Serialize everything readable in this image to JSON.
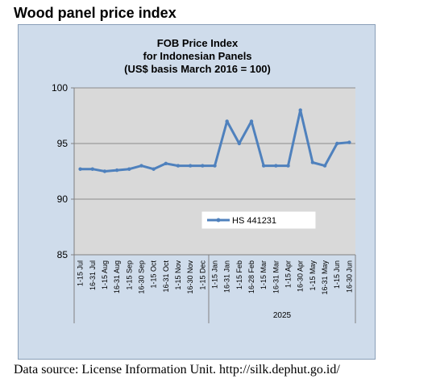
{
  "heading": "Wood panel price index",
  "source": "Data source: License Information Unit. http://silk.dephut.go.id/",
  "colors": {
    "frame_bg": "#cfdceb",
    "plot_bg": "#d9d9d9",
    "series": "#4f81bd",
    "grid": "#8c8c8c"
  },
  "chart_data": {
    "type": "line",
    "title": [
      "FOB Price Index",
      "for Indonesian Panels",
      "(US$ basis March 2016 = 100)"
    ],
    "xlabel": "",
    "ylabel": "",
    "ylim": [
      85,
      100
    ],
    "yticks": [
      85,
      90,
      95,
      100
    ],
    "grid": true,
    "legend": "inside-lower-right",
    "x": [
      "1-15 Jul",
      "16-31 Jul",
      "1-15 Aug",
      "16-31 Aug",
      "1-15 Sep",
      "16-30 Sep",
      "1-15 Oct",
      "16-31 Oct",
      "1-15 Nov",
      "16-30 Nov",
      "1-15 Dec",
      "1-15 Jan",
      "16-31 Jan",
      "1-15 Feb",
      "16-28 Feb",
      "1-15 Mar",
      "16-31 Mar",
      "1-15 Apr",
      "16-30 Apr",
      "1-15 May",
      "16-31 May",
      "1-15 Jun",
      "16-30 Jun"
    ],
    "year_groups": [
      {
        "label": "",
        "start": 0,
        "end": 10
      },
      {
        "label": "2025",
        "start": 11,
        "end": 22
      }
    ],
    "series": [
      {
        "name": "HS 441231",
        "values": [
          92.7,
          92.7,
          92.5,
          92.6,
          92.7,
          93.0,
          92.7,
          93.2,
          93.0,
          93.0,
          93.0,
          93.0,
          97.0,
          95.0,
          97.0,
          93.0,
          93.0,
          93.0,
          98.0,
          93.3,
          93.0,
          95.0,
          95.1
        ]
      }
    ]
  }
}
